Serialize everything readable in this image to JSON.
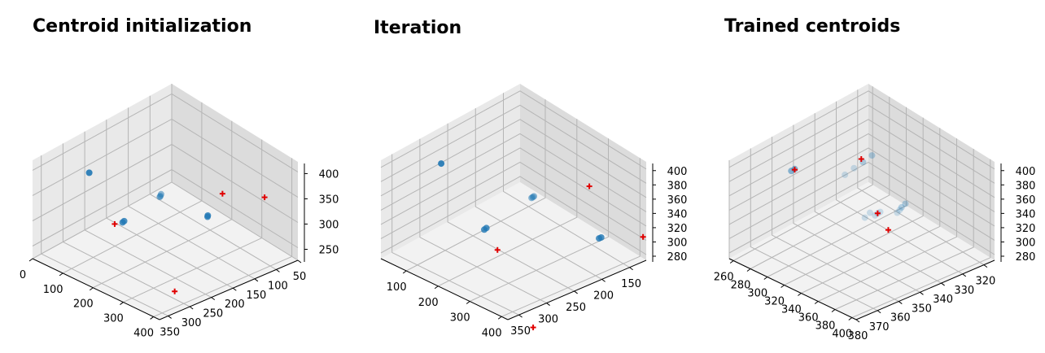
{
  "colors": {
    "pane_left": "#e9e9e9",
    "pane_right": "#dcdcdc",
    "pane_floor": "#f2f2f2",
    "grid": "#b5b5b5",
    "axis": "#000000",
    "points": "#1f77b4",
    "centroids": "#e00000"
  },
  "chart_data": [
    {
      "type": "scatter3d",
      "title": "Centroid initialization",
      "xlim": [
        0,
        420
      ],
      "ylim": [
        50,
        370
      ],
      "zlim": [
        225,
        420
      ],
      "xticks": [
        0,
        100,
        200,
        300,
        400
      ],
      "yticks": [
        50,
        100,
        150,
        200,
        250,
        300,
        350
      ],
      "zticks": [
        250,
        300,
        350,
        400
      ],
      "points": [
        [
          130,
          330,
          415,
          0.9
        ],
        [
          210,
          220,
          350,
          0.5
        ],
        [
          215,
          225,
          350,
          0.5
        ],
        [
          220,
          230,
          352,
          0.5
        ],
        [
          260,
          340,
          362,
          0.8
        ],
        [
          262,
          345,
          362,
          0.8
        ],
        [
          250,
          140,
          288,
          0.8
        ],
        [
          252,
          142,
          287,
          0.8
        ]
      ],
      "centroids": [
        [
          200,
          320,
          330
        ],
        [
          410,
          120,
          372
        ],
        [
          270,
          120,
          330
        ],
        [
          370,
          300,
          240
        ]
      ]
    },
    {
      "type": "scatter3d",
      "title": "Iteration",
      "xlim": [
        20,
        420
      ],
      "ylim": [
        120,
        370
      ],
      "zlim": [
        272,
        410
      ],
      "xticks": [
        100,
        200,
        300,
        400
      ],
      "yticks": [
        150,
        200,
        250,
        300,
        350
      ],
      "zticks": [
        280,
        300,
        320,
        340,
        360,
        380,
        400
      ],
      "points": [
        [
          140,
          330,
          415,
          0.9
        ],
        [
          240,
          220,
          350,
          0.5
        ],
        [
          245,
          225,
          352,
          0.5
        ],
        [
          250,
          230,
          354,
          0.5
        ],
        [
          300,
          340,
          364,
          0.8
        ],
        [
          302,
          345,
          364,
          0.8
        ],
        [
          330,
          150,
          290,
          0.8
        ],
        [
          332,
          155,
          291,
          0.8
        ]
      ],
      "centroids": [
        [
          300,
          320,
          326
        ],
        [
          410,
          120,
          302
        ],
        [
          310,
          160,
          360
        ],
        [
          430,
          330,
          250
        ]
      ]
    },
    {
      "type": "scatter3d",
      "title": "Trained centroids",
      "xlim": [
        255,
        405
      ],
      "ylim": [
        315,
        380
      ],
      "zlim": [
        272,
        410
      ],
      "xticks": [
        260,
        280,
        300,
        320,
        340,
        360,
        380,
        400
      ],
      "yticks": [
        320,
        330,
        340,
        350,
        360,
        370,
        380
      ],
      "zticks": [
        280,
        300,
        320,
        340,
        360,
        380,
        400
      ],
      "points": [
        [
          297,
          366,
          400,
          0.5
        ],
        [
          298,
          368,
          401,
          0.5
        ],
        [
          272,
          320,
          330,
          0.3
        ],
        [
          274,
          325,
          330,
          0.3
        ],
        [
          276,
          330,
          331,
          0.2
        ],
        [
          278,
          335,
          331,
          0.2
        ],
        [
          375,
          345,
          370,
          0.3
        ],
        [
          378,
          348,
          371,
          0.3
        ],
        [
          381,
          350,
          372,
          0.2
        ],
        [
          383,
          352,
          372,
          0.2
        ],
        [
          380,
          360,
          380,
          0.2
        ],
        [
          378,
          358,
          378,
          0.2
        ],
        [
          382,
          362,
          381,
          0.2
        ],
        [
          380,
          366,
          382,
          0.2
        ],
        [
          376,
          362,
          381,
          0.2
        ]
      ],
      "centroids": [
        [
          297,
          366,
          399
        ],
        [
          272,
          325,
          333
        ],
        [
          380,
          360,
          380
        ],
        [
          380,
          355,
          350
        ]
      ]
    }
  ]
}
